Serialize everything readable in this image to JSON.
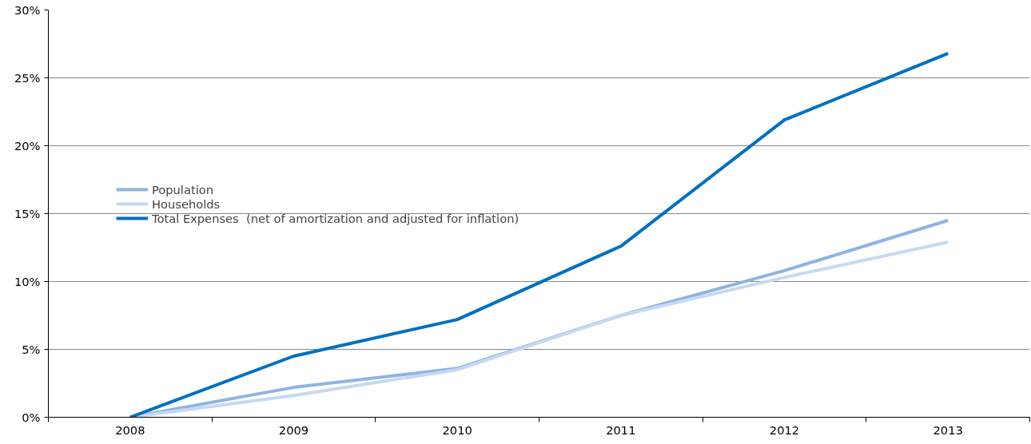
{
  "chart_data": {
    "type": "line",
    "categories": [
      "2008",
      "2009",
      "2010",
      "2011",
      "2012",
      "2013"
    ],
    "series": [
      {
        "name": "Population",
        "color": "#8eb4e3",
        "values": [
          0,
          2.2,
          3.6,
          7.5,
          10.8,
          14.5
        ]
      },
      {
        "name": "Households",
        "color": "#c6d9f1",
        "values": [
          0,
          1.6,
          3.5,
          7.5,
          10.3,
          12.9
        ]
      },
      {
        "name": "Total Expenses  (net of amortization and adjusted for inflation)",
        "color": "#0070c0",
        "values": [
          0,
          4.5,
          7.2,
          12.6,
          21.9,
          26.8
        ]
      }
    ],
    "ylim": [
      0,
      30
    ],
    "yticks": [
      {
        "value": 0,
        "label": "0%"
      },
      {
        "value": 5,
        "label": "5%"
      },
      {
        "value": 10,
        "label": "10%"
      },
      {
        "value": 15,
        "label": "15%"
      },
      {
        "value": 20,
        "label": "20%"
      },
      {
        "value": 25,
        "label": "25%"
      },
      {
        "value": 30,
        "label": "30%"
      }
    ],
    "grid": "y",
    "legend": "left",
    "marker": "none",
    "line_style": "solid"
  }
}
